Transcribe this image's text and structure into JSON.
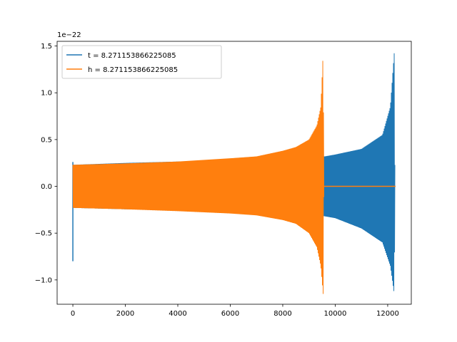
{
  "chart_data": {
    "type": "line",
    "offset_label": "1e−22",
    "xlim": [
      -600,
      12900
    ],
    "ylim": [
      -1.26,
      1.55
    ],
    "x_ticks": [
      0,
      2000,
      4000,
      6000,
      8000,
      10000,
      12000
    ],
    "x_tick_labels": [
      "0",
      "2000",
      "4000",
      "6000",
      "8000",
      "10000",
      "12000"
    ],
    "y_ticks": [
      -1.0,
      -0.5,
      0.0,
      0.5,
      1.0,
      1.5
    ],
    "y_tick_labels": [
      "−1.0",
      "−0.5",
      "0.0",
      "0.5",
      "1.0",
      "1.5"
    ],
    "legend_position": "upper-left",
    "series": [
      {
        "name": "t = 8.271153866225085",
        "color": "#1f77b4",
        "spike_x": 0,
        "spike_range": [
          -0.8,
          0.26
        ],
        "envelope_x": [
          0,
          2000,
          4000,
          6000,
          8000,
          9000,
          9600,
          10000,
          11000,
          11800,
          12100,
          12250,
          12280
        ],
        "envelope_upper": [
          0.23,
          0.25,
          0.265,
          0.28,
          0.3,
          0.31,
          0.32,
          0.34,
          0.4,
          0.55,
          0.85,
          1.43,
          0.0
        ],
        "envelope_lower": [
          -0.23,
          -0.245,
          -0.255,
          -0.265,
          -0.28,
          -0.29,
          -0.32,
          -0.34,
          -0.45,
          -0.6,
          -0.85,
          -1.15,
          0.0
        ],
        "x_end": 12300
      },
      {
        "name": "h = 8.271153866225085",
        "color": "#ff7f0e",
        "envelope_x": [
          0,
          2000,
          4000,
          6000,
          7000,
          8000,
          8500,
          9000,
          9300,
          9450,
          9540,
          9570
        ],
        "envelope_upper": [
          0.23,
          0.245,
          0.265,
          0.3,
          0.32,
          0.38,
          0.42,
          0.5,
          0.65,
          0.85,
          1.43,
          0.0
        ],
        "envelope_lower": [
          -0.23,
          -0.245,
          -0.265,
          -0.29,
          -0.31,
          -0.36,
          -0.4,
          -0.5,
          -0.65,
          -0.85,
          -1.15,
          0.0
        ],
        "flat_x": [
          9570,
          12300
        ],
        "flat_y": 0.0
      }
    ]
  }
}
